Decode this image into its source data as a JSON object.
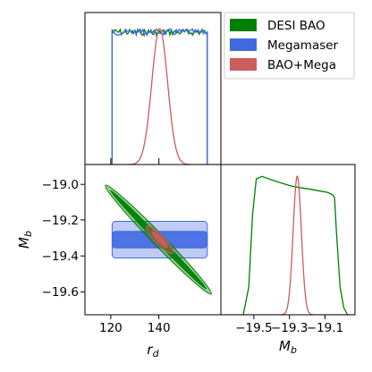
{
  "chart_data": [
    {
      "type": "line",
      "panel": "r_d marginal",
      "xlim": [
        110,
        160
      ],
      "x_ticks": [
        120,
        140
      ],
      "series": [
        {
          "name": "DESI BAO",
          "color": "#008000",
          "shape": "flat top hat",
          "support": [
            120,
            155
          ]
        },
        {
          "name": "Megamaser",
          "color": "#4169e1",
          "shape": "flat top hat",
          "support": [
            120,
            155
          ]
        },
        {
          "name": "BAO+Mega",
          "color": "#cd5c5c",
          "shape": "gaussian",
          "peak": 137.5,
          "sigma": 2.9
        }
      ]
    },
    {
      "type": "contour",
      "panel": "r_d vs M_b",
      "xlabel": "$r_d$",
      "ylabel": "$M_b$",
      "xlim": [
        110,
        160
      ],
      "ylim": [
        -19.72,
        -18.9
      ],
      "x_ticks": [
        120,
        140
      ],
      "y_ticks": [
        -19.0,
        -19.2,
        -19.4,
        -19.6
      ],
      "x_tick_labels": [
        "120",
        "140"
      ],
      "y_tick_labels": [
        "−19.0",
        "−19.2",
        "−19.4",
        "−19.6"
      ],
      "series": [
        {
          "name": "DESI BAO",
          "color": "#008000",
          "shape": "narrow tilted band",
          "from": [
            118,
            -19.02
          ],
          "to": [
            156,
            -19.6
          ]
        },
        {
          "name": "Megamaser",
          "color": "#4169e1",
          "shape": "horizontal band",
          "x_range": [
            120,
            155
          ],
          "y_center": -19.31,
          "y_halfwidth_1sigma": 0.045,
          "y_halfwidth_2sigma": 0.1
        },
        {
          "name": "BAO+Mega",
          "color": "#cd5c5c",
          "shape": "compact tilted ellipse",
          "center": [
            137.5,
            -19.31
          ]
        }
      ]
    },
    {
      "type": "line",
      "panel": "M_b marginal",
      "xlabel": "$M_b$",
      "xlim": [
        -19.72,
        -19.0
      ],
      "x_ticks": [
        -19.5,
        -19.3,
        -19.1
      ],
      "x_tick_labels": [
        "−19.5",
        "−19.3",
        "−19.1"
      ],
      "series": [
        {
          "name": "DESI BAO",
          "color": "#008000",
          "x": [
            -19.6,
            -19.57,
            -19.55,
            -19.53,
            -19.5,
            -19.45,
            -19.4,
            -19.35,
            -19.3,
            -19.25,
            -19.2,
            -19.15,
            -19.12,
            -19.11,
            -19.1,
            -19.08,
            -19.06,
            -19.04
          ],
          "y": [
            0.0,
            0.2,
            0.72,
            0.98,
            1.0,
            0.97,
            0.95,
            0.93,
            0.92,
            0.91,
            0.9,
            0.88,
            0.87,
            0.85,
            0.6,
            0.2,
            0.05,
            0.0
          ]
        },
        {
          "name": "BAO+Mega",
          "color": "#cd5c5c",
          "shape": "gaussian",
          "peak": -19.31,
          "sigma": 0.022
        }
      ]
    }
  ],
  "legend": {
    "placement": "top-right",
    "entries": [
      {
        "label": "DESI BAO",
        "color": "#008000"
      },
      {
        "label": "Megamaser",
        "color": "#4169e1"
      },
      {
        "label": "BAO+Mega",
        "color": "#cd5c5c"
      }
    ]
  }
}
